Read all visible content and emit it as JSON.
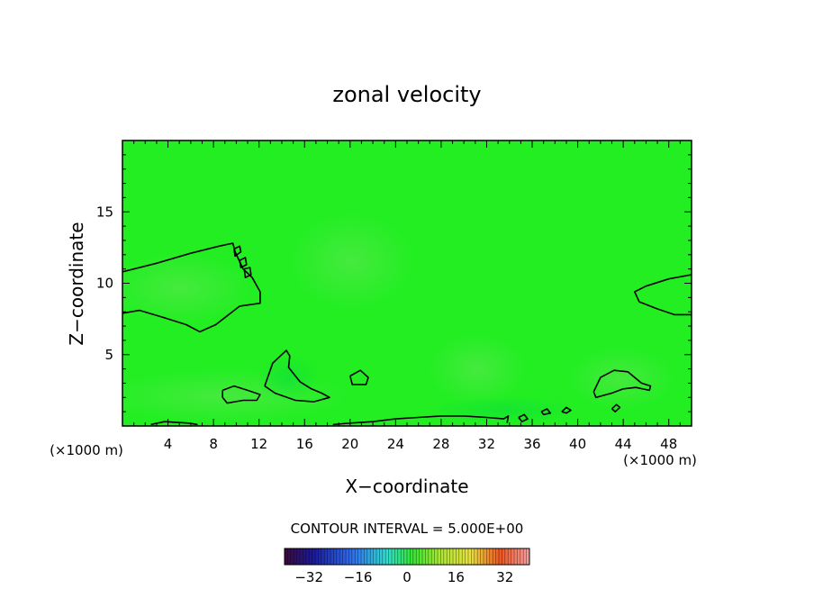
{
  "chart_data": {
    "type": "heatmap",
    "title": "zonal velocity",
    "xlabel": "X−coordinate",
    "ylabel": "Z−coordinate",
    "x_unit_left": "(×1000 m)",
    "x_unit_right": "(×1000 m)",
    "xlim": [
      0,
      50
    ],
    "ylim": [
      0,
      20
    ],
    "x_ticks": [
      4,
      8,
      12,
      16,
      20,
      24,
      28,
      32,
      36,
      40,
      44,
      48
    ],
    "x_tick_labels": [
      "4",
      "8",
      "12",
      "16",
      "20",
      "24",
      "28",
      "32",
      "36",
      "40",
      "44",
      "48"
    ],
    "y_ticks": [
      5,
      10,
      15
    ],
    "y_tick_labels": [
      "5",
      "10",
      "15"
    ],
    "contour_interval_label": "CONTOUR INTERVAL = 5.000E+00",
    "colorbar": {
      "range": [
        -40,
        40
      ],
      "ticks": [
        -32,
        -16,
        0,
        16,
        32
      ],
      "tick_labels": [
        "−32",
        "−16",
        "0",
        "16",
        "32"
      ]
    },
    "field_background_color": "#22ee22",
    "contours": [
      {
        "name": "upper-left-contour",
        "points": [
          [
            0,
            10.8
          ],
          [
            3,
            11.4
          ],
          [
            6,
            12.1
          ],
          [
            8.5,
            12.6
          ],
          [
            9.7,
            12.8
          ],
          [
            9.9,
            12.2
          ],
          [
            10.6,
            11
          ],
          [
            11.4,
            10.4
          ],
          [
            12.1,
            9.4
          ],
          [
            12.1,
            8.6
          ],
          [
            10.3,
            8.4
          ],
          [
            8.2,
            7.1
          ],
          [
            6.8,
            6.6
          ],
          [
            5.6,
            7.1
          ],
          [
            3.6,
            7.6
          ],
          [
            1.5,
            8.1
          ],
          [
            0,
            7.9
          ]
        ]
      },
      {
        "name": "small-loop-1",
        "points": [
          [
            9.8,
            12.4
          ],
          [
            10.3,
            12.6
          ],
          [
            10.4,
            12.2
          ],
          [
            9.9,
            11.9
          ],
          [
            9.8,
            12.4
          ]
        ]
      },
      {
        "name": "small-loop-2",
        "points": [
          [
            10.3,
            11.6
          ],
          [
            10.8,
            11.8
          ],
          [
            10.9,
            11.3
          ],
          [
            10.4,
            11.1
          ],
          [
            10.3,
            11.6
          ]
        ]
      },
      {
        "name": "small-loop-3",
        "points": [
          [
            10.7,
            11.0
          ],
          [
            11.2,
            11.1
          ],
          [
            11.3,
            10.6
          ],
          [
            10.8,
            10.4
          ],
          [
            10.7,
            11.0
          ]
        ]
      },
      {
        "name": "right-mid-contour",
        "points": [
          [
            50,
            10.6
          ],
          [
            48,
            10.3
          ],
          [
            46,
            9.8
          ],
          [
            45,
            9.4
          ],
          [
            45.4,
            8.7
          ],
          [
            47,
            8.2
          ],
          [
            48.5,
            7.8
          ],
          [
            50,
            7.8
          ]
        ]
      },
      {
        "name": "lower-left-blob",
        "points": [
          [
            8.8,
            2.5
          ],
          [
            9.8,
            2.8
          ],
          [
            11,
            2.5
          ],
          [
            12.1,
            2.2
          ],
          [
            11.8,
            1.8
          ],
          [
            10.6,
            1.8
          ],
          [
            9.2,
            1.6
          ],
          [
            8.8,
            2.0
          ],
          [
            8.8,
            2.5
          ]
        ]
      },
      {
        "name": "mid-low-blob",
        "points": [
          [
            12.5,
            2.8
          ],
          [
            13.2,
            4.4
          ],
          [
            14.4,
            5.3
          ],
          [
            14.7,
            4.9
          ],
          [
            14.6,
            4.1
          ],
          [
            15.6,
            3.1
          ],
          [
            16.6,
            2.6
          ],
          [
            17.5,
            2.3
          ],
          [
            18.2,
            2.0
          ],
          [
            16.8,
            1.7
          ],
          [
            15.2,
            1.8
          ],
          [
            13.4,
            2.3
          ],
          [
            12.5,
            2.8
          ]
        ]
      },
      {
        "name": "small-oval-21",
        "points": [
          [
            20.0,
            3.5
          ],
          [
            20.9,
            3.9
          ],
          [
            21.6,
            3.4
          ],
          [
            21.4,
            2.9
          ],
          [
            20.2,
            2.9
          ],
          [
            20.0,
            3.5
          ]
        ]
      },
      {
        "name": "bottom-band-left",
        "points": [
          [
            2.5,
            0.1
          ],
          [
            3.7,
            0.3
          ],
          [
            5.8,
            0.2
          ],
          [
            6.6,
            0.1
          ]
        ]
      },
      {
        "name": "bottom-band-mid",
        "points": [
          [
            18.5,
            0.1
          ],
          [
            20,
            0.2
          ],
          [
            22,
            0.3
          ],
          [
            24,
            0.5
          ],
          [
            26,
            0.6
          ],
          [
            28,
            0.7
          ],
          [
            30,
            0.7
          ],
          [
            32,
            0.6
          ],
          [
            33.5,
            0.5
          ],
          [
            33.9,
            0.7
          ],
          [
            33.8,
            0.2
          ]
        ]
      },
      {
        "name": "right-low-blob",
        "points": [
          [
            41.4,
            2.4
          ],
          [
            42,
            3.4
          ],
          [
            43.2,
            3.9
          ],
          [
            44.4,
            3.8
          ],
          [
            45.6,
            3.0
          ],
          [
            46.4,
            2.8
          ],
          [
            46.3,
            2.5
          ],
          [
            45.1,
            2.7
          ],
          [
            44,
            2.6
          ],
          [
            43,
            2.3
          ],
          [
            41.6,
            2.0
          ],
          [
            41.4,
            2.4
          ]
        ]
      },
      {
        "name": "small-loops-36-40",
        "points": [
          [
            34.8,
            0.6
          ],
          [
            35.3,
            0.8
          ],
          [
            35.6,
            0.5
          ],
          [
            35.1,
            0.3
          ],
          [
            34.8,
            0.6
          ]
        ]
      },
      {
        "name": "small-loop-37",
        "points": [
          [
            36.8,
            1.0
          ],
          [
            37.3,
            1.2
          ],
          [
            37.6,
            0.9
          ],
          [
            37.0,
            0.8
          ],
          [
            36.8,
            1.0
          ]
        ]
      },
      {
        "name": "small-loop-39",
        "points": [
          [
            38.6,
            1.0
          ],
          [
            39.0,
            1.3
          ],
          [
            39.4,
            1.1
          ],
          [
            39.0,
            0.9
          ],
          [
            38.6,
            1.0
          ]
        ]
      },
      {
        "name": "small-loop-44",
        "points": [
          [
            43.0,
            1.2
          ],
          [
            43.4,
            1.5
          ],
          [
            43.7,
            1.3
          ],
          [
            43.3,
            1.0
          ],
          [
            43.0,
            1.2
          ]
        ]
      }
    ]
  }
}
